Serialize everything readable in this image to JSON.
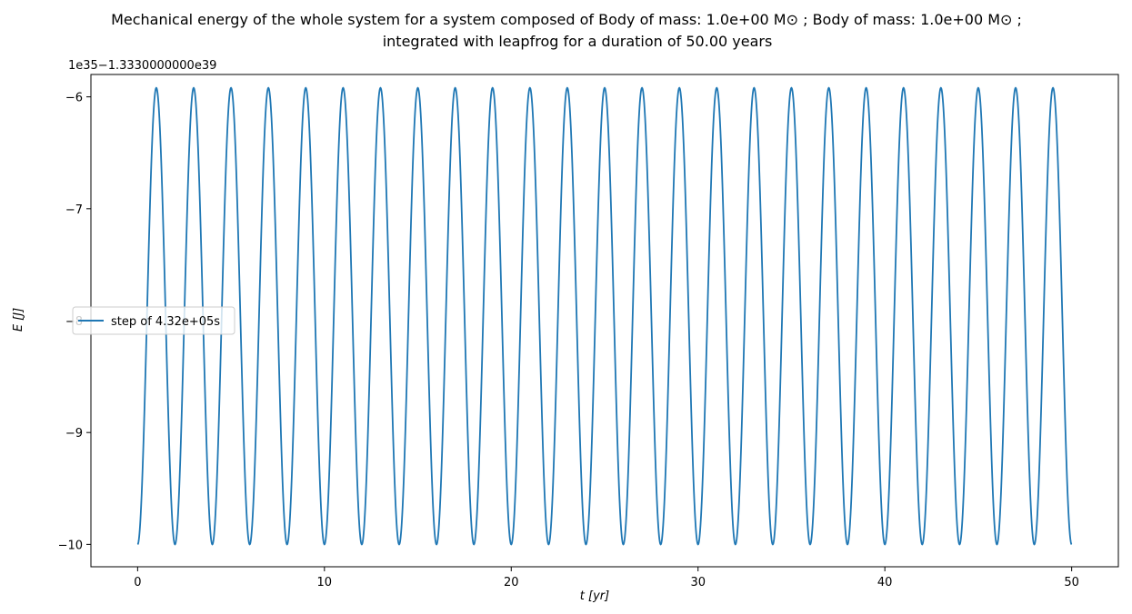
{
  "chart_data": {
    "type": "line",
    "title_line1": "Mechanical energy of the whole system for a system composed of Body of mass: 1.0e+00 M⊙ ; Body of mass: 1.0e+00 M⊙ ;",
    "title_line2": "integrated with leapfrog for a duration of 50.00 years",
    "xlabel": "t [yr]",
    "ylabel": "E [J]",
    "y_offset_text": "1e35−1.3330000000e39",
    "xlim": [
      -2.5,
      52.5
    ],
    "ylim": [
      -10.2,
      -5.8
    ],
    "x_ticks": [
      0,
      10,
      20,
      30,
      40,
      50
    ],
    "y_ticks": [
      -10,
      -9,
      -8,
      -7,
      -6
    ],
    "x_tick_labels": [
      "0",
      "10",
      "20",
      "30",
      "40",
      "50"
    ],
    "y_tick_labels": [
      "−10",
      "−9",
      "−8",
      "−7",
      "−6"
    ],
    "grid": false,
    "legend_position": "center-left",
    "series": [
      {
        "name": "step of 4.32e+05s",
        "color": "#1f77b4",
        "x_start": 0,
        "x_end": 50,
        "period_yr": 2.0,
        "min": -10.0,
        "max": -5.92,
        "first_max_at": 1.0,
        "end_value": -9.95
      }
    ]
  }
}
